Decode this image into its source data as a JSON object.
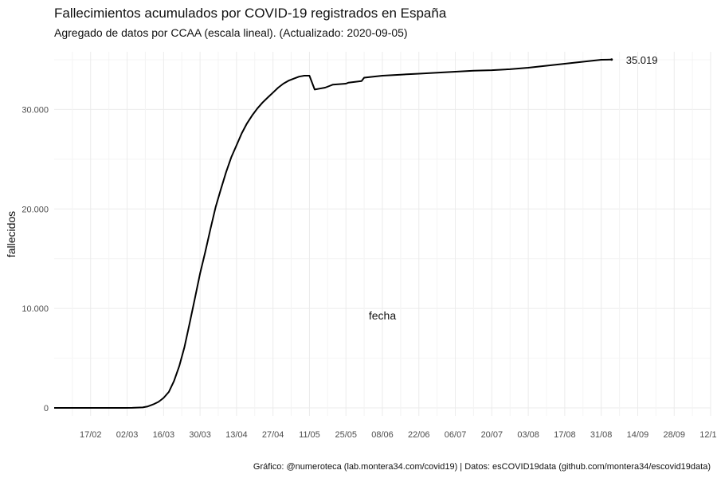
{
  "chart_data": {
    "type": "line",
    "title": "Fallecimientos acumulados por COVID-19 registrados en España",
    "subtitle": "Agregado de datos por CCAA (escala lineal). (Actualizado: 2020-09-05)",
    "xlabel": "fecha",
    "ylabel": "fallecidos",
    "caption": "Gráfico: @numeroteca (lab.montera34.com/covid19) | Datos: esCOVID19data (github.com/montera34/escovid19data)",
    "x_axis": {
      "type": "date",
      "range": [
        "2020-02-03",
        "2020-10-12"
      ],
      "ticks": [
        "2020-02-17",
        "2020-03-02",
        "2020-03-16",
        "2020-03-30",
        "2020-04-13",
        "2020-04-27",
        "2020-05-11",
        "2020-05-25",
        "2020-06-08",
        "2020-06-22",
        "2020-07-06",
        "2020-07-20",
        "2020-08-03",
        "2020-08-17",
        "2020-08-31",
        "2020-09-14",
        "2020-09-28",
        "2020-10-12"
      ],
      "tick_labels": [
        "17/02",
        "02/03",
        "16/03",
        "30/03",
        "13/04",
        "27/04",
        "11/05",
        "25/05",
        "08/06",
        "22/06",
        "06/07",
        "20/07",
        "03/08",
        "17/08",
        "31/08",
        "14/09",
        "28/09",
        "12/10"
      ]
    },
    "y_axis": {
      "range": [
        -800,
        35800
      ],
      "ticks": [
        0,
        10000,
        20000,
        30000
      ],
      "tick_labels": [
        "0",
        "10.000",
        "20.000",
        "30.000"
      ]
    },
    "grid": true,
    "legend": "none",
    "line_color": "#000000",
    "end_label": "35.019",
    "x": [
      "2020-02-03",
      "2020-03-01",
      "2020-03-04",
      "2020-03-08",
      "2020-03-10",
      "2020-03-12",
      "2020-03-14",
      "2020-03-15",
      "2020-03-16",
      "2020-03-18",
      "2020-03-20",
      "2020-03-22",
      "2020-03-24",
      "2020-03-26",
      "2020-03-28",
      "2020-03-30",
      "2020-04-01",
      "2020-04-03",
      "2020-04-05",
      "2020-04-07",
      "2020-04-09",
      "2020-04-11",
      "2020-04-13",
      "2020-04-15",
      "2020-04-17",
      "2020-04-19",
      "2020-04-21",
      "2020-04-23",
      "2020-04-25",
      "2020-04-27",
      "2020-04-29",
      "2020-05-01",
      "2020-05-03",
      "2020-05-05",
      "2020-05-07",
      "2020-05-09",
      "2020-05-11",
      "2020-05-13",
      "2020-05-15",
      "2020-05-17",
      "2020-05-19",
      "2020-05-20",
      "2020-05-25",
      "2020-05-26",
      "2020-05-31",
      "2020-06-01",
      "2020-06-08",
      "2020-06-15",
      "2020-06-22",
      "2020-06-29",
      "2020-07-06",
      "2020-07-13",
      "2020-07-20",
      "2020-07-27",
      "2020-08-03",
      "2020-08-10",
      "2020-08-17",
      "2020-08-24",
      "2020-08-31",
      "2020-09-04"
    ],
    "y": [
      0,
      0,
      10,
      50,
      150,
      350,
      600,
      800,
      1000,
      1600,
      2700,
      4200,
      6100,
      8500,
      11000,
      13500,
      15700,
      18000,
      20200,
      22000,
      23700,
      25200,
      26400,
      27600,
      28600,
      29400,
      30100,
      30700,
      31200,
      31700,
      32200,
      32600,
      32900,
      33100,
      33300,
      33400,
      33400,
      32000,
      32100,
      32200,
      32400,
      32500,
      32600,
      32700,
      32850,
      33200,
      33400,
      33500,
      33600,
      33700,
      33800,
      33900,
      33950,
      34050,
      34200,
      34400,
      34600,
      34800,
      35000,
      35019
    ]
  }
}
